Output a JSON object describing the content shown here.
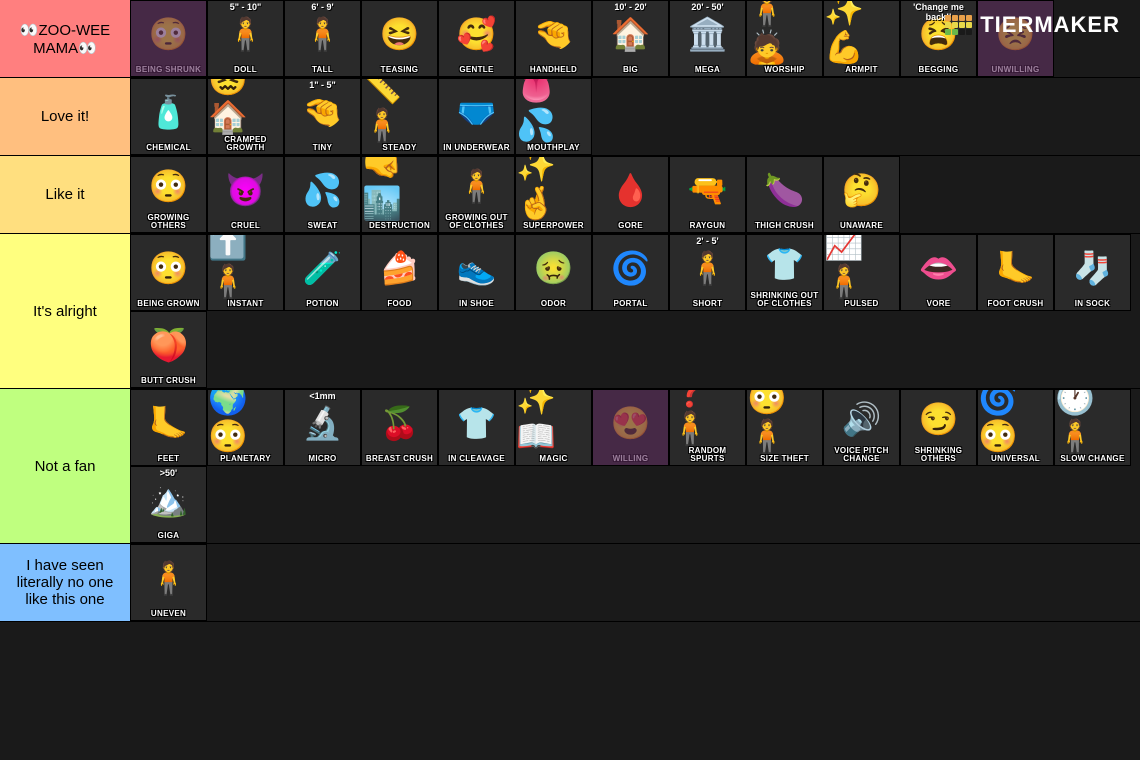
{
  "brand": "TIERMAKER",
  "logo_colors": {
    "r1": [
      "#e8a04a",
      "#e8a04a",
      "#e8a04a",
      "#e8a04a"
    ],
    "r2": [
      "#e8d84a",
      "#e8d84a",
      "#e8d84a",
      "#e8d84a"
    ],
    "r3": [
      "#6ab84a",
      "#6ab84a",
      "#1a1a1a",
      "#1a1a1a"
    ]
  },
  "tiers": [
    {
      "label": "👀ZOO-WEE MAMA👀",
      "color": "#ff7f7f",
      "items": [
        {
          "label": "Being Shrunk",
          "icon": "😳",
          "bg": "#5a2a5a"
        },
        {
          "label": "DOLL",
          "icon": "🧍",
          "header": "5\" - 10\""
        },
        {
          "label": "TALL",
          "icon": "🧍",
          "header": "6' - 9'"
        },
        {
          "label": "TEASING",
          "icon": "😆"
        },
        {
          "label": "GENTLE",
          "icon": "🥰"
        },
        {
          "label": "HANDHELD",
          "icon": "🤏"
        },
        {
          "label": "BIG",
          "icon": "🏠",
          "header": "10' - 20'"
        },
        {
          "label": "MEGA",
          "icon": "🏛️",
          "header": "20' - 50'"
        },
        {
          "label": "WORSHIP",
          "icon": "🧍🙇"
        },
        {
          "label": "ARMPIT",
          "icon": "✨💪"
        },
        {
          "label": "BEGGING",
          "icon": "😫",
          "header": "'Change me back!'"
        },
        {
          "label": "UNWILLING",
          "icon": "😣",
          "bg": "#5a2a5a"
        }
      ]
    },
    {
      "label": "Love it!",
      "color": "#ffbf7f",
      "items": [
        {
          "label": "CHEMICAL",
          "icon": "🧴"
        },
        {
          "label": "Cramped Growth",
          "icon": "😖🏠"
        },
        {
          "label": "TINY",
          "icon": "🤏",
          "header": "1\" - 5\""
        },
        {
          "label": "STEADY",
          "icon": "📏🧍"
        },
        {
          "label": "IN UNDERWEAR",
          "icon": "🩲"
        },
        {
          "label": "MOUTHPLAY",
          "icon": "👅💦"
        }
      ]
    },
    {
      "label": "Like it",
      "color": "#ffdf7f",
      "items": [
        {
          "label": "Growing Others",
          "icon": "😳"
        },
        {
          "label": "CRUEL",
          "icon": "😈"
        },
        {
          "label": "SWEAT",
          "icon": "💦"
        },
        {
          "label": "DESTRUCTION",
          "icon": "🤜🏙️"
        },
        {
          "label": "Growing out of Clothes",
          "icon": "🧍"
        },
        {
          "label": "SUPERPOWER",
          "icon": "✨🤞"
        },
        {
          "label": "GORE",
          "icon": "🩸"
        },
        {
          "label": "RAYGUN",
          "icon": "🔫"
        },
        {
          "label": "THIGH CRUSH",
          "icon": "🍆"
        },
        {
          "label": "UNAWARE",
          "icon": "🤔"
        }
      ]
    },
    {
      "label": "It's alright",
      "color": "#ffff7f",
      "items": [
        {
          "label": "Being Grown",
          "icon": "😳"
        },
        {
          "label": "INSTANT",
          "icon": "⬆️🧍"
        },
        {
          "label": "POTION",
          "icon": "🧪"
        },
        {
          "label": "FOOD",
          "icon": "🍰"
        },
        {
          "label": "IN SHOE",
          "icon": "👟"
        },
        {
          "label": "ODOR",
          "icon": "🤢"
        },
        {
          "label": "PORTAL",
          "icon": "🌀"
        },
        {
          "label": "SHORT",
          "icon": "🧍",
          "header": "2' - 5'"
        },
        {
          "label": "Shrinking out of Clothes",
          "icon": "👕"
        },
        {
          "label": "PULSED",
          "icon": "📈🧍"
        },
        {
          "label": "VORE",
          "icon": "👄"
        },
        {
          "label": "FOOT CRUSH",
          "icon": "🦶"
        },
        {
          "label": "IN SOCK",
          "icon": "🧦"
        },
        {
          "label": "BUTT CRUSH",
          "icon": "🍑"
        }
      ]
    },
    {
      "label": "Not a fan",
      "color": "#bfff7f",
      "items": [
        {
          "label": "FEET",
          "icon": "🦶"
        },
        {
          "label": "PLANETARY",
          "icon": "🌍😳"
        },
        {
          "label": "MICRO",
          "icon": "🔬",
          "header": "<1mm"
        },
        {
          "label": "BREAST CRUSH",
          "icon": "🍒"
        },
        {
          "label": "IN CLEAVAGE",
          "icon": "👕"
        },
        {
          "label": "MAGIC",
          "icon": "✨📖"
        },
        {
          "label": "WILLING",
          "icon": "😍",
          "bg": "#5a2a5a"
        },
        {
          "label": "Random Spurts",
          "icon": "❓🧍"
        },
        {
          "label": "SIZE THEFT",
          "icon": "😳🧍"
        },
        {
          "label": "Voice Pitch Change",
          "icon": "🔊"
        },
        {
          "label": "Shrinking Others",
          "icon": "😏"
        },
        {
          "label": "UNIVERSAL",
          "icon": "🌀😳"
        },
        {
          "label": "SLOW CHANGE",
          "icon": "🕐🧍"
        },
        {
          "label": "GIGA",
          "icon": "🏔️",
          "header": ">50'"
        }
      ]
    },
    {
      "label": "I have seen literally no one like this one",
      "color": "#7fbfff",
      "items": [
        {
          "label": "UNEVEN",
          "icon": "🧍"
        }
      ]
    }
  ]
}
